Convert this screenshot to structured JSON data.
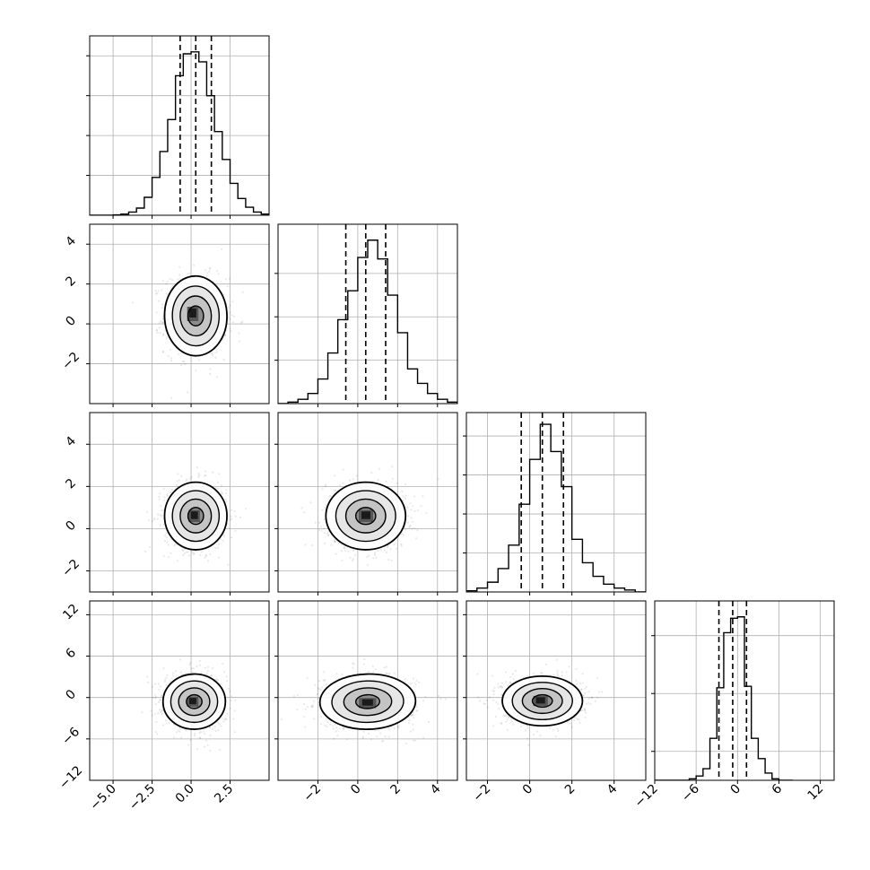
{
  "chart_data": {
    "type": "corner",
    "grid": true,
    "params": [
      {
        "range": [
          -6.5,
          5.0
        ],
        "x_ticks": [
          -5.0,
          -2.5,
          0.0,
          2.5
        ],
        "x_tick_labels": [
          "−5.0",
          "−2.5",
          "0.0",
          "2.5"
        ],
        "y_ticks": null,
        "y_tick_labels": null,
        "quantiles": [
          -0.7,
          0.3,
          1.3
        ],
        "hist": {
          "edges": [
            -6.5,
            -6.0,
            -5.5,
            -5.0,
            -4.5,
            -4.0,
            -3.5,
            -3.0,
            -2.5,
            -2.0,
            -1.5,
            -1.0,
            -0.5,
            0.0,
            0.5,
            1.0,
            1.5,
            2.0,
            2.5,
            3.0,
            3.5,
            4.0,
            4.5,
            5.0
          ],
          "counts": [
            0,
            0,
            0,
            1,
            3,
            8,
            18,
            45,
            95,
            160,
            240,
            350,
            405,
            410,
            385,
            300,
            210,
            140,
            80,
            42,
            20,
            8,
            3
          ],
          "ymax": 450,
          "grid_ticks": [
            100,
            200,
            300,
            400
          ]
        }
      },
      {
        "range": [
          -4.0,
          5.0
        ],
        "x_ticks": [
          -2,
          0,
          2,
          4
        ],
        "x_tick_labels": [
          "−2",
          "0",
          "2",
          "4"
        ],
        "y_ticks": [
          -2,
          0,
          2,
          4
        ],
        "y_tick_labels": [
          "−2",
          "0",
          "2",
          "4"
        ],
        "quantiles": [
          -0.6,
          0.4,
          1.4
        ],
        "hist": {
          "edges": [
            -4.0,
            -3.5,
            -3.0,
            -2.5,
            -2.0,
            -1.5,
            -1.0,
            -0.5,
            0.0,
            0.5,
            1.0,
            1.5,
            2.0,
            2.5,
            3.0,
            3.5,
            4.0,
            4.5,
            5.0
          ],
          "counts": [
            0,
            5,
            15,
            35,
            85,
            175,
            290,
            390,
            505,
            565,
            500,
            375,
            245,
            120,
            70,
            35,
            15,
            5
          ],
          "ymax": 620,
          "grid_ticks": [
            150,
            300,
            450
          ]
        }
      },
      {
        "range": [
          -3.0,
          5.5
        ],
        "x_ticks": [
          -2,
          0,
          2,
          4
        ],
        "x_tick_labels": [
          "−2",
          "0",
          "2",
          "4"
        ],
        "y_ticks": [
          -2,
          0,
          2,
          4
        ],
        "y_tick_labels": [
          "−2",
          "0",
          "2",
          "4"
        ],
        "quantiles": [
          -0.4,
          0.6,
          1.6
        ],
        "hist": {
          "edges": [
            -3.0,
            -2.5,
            -2.0,
            -1.5,
            -1.0,
            -0.5,
            0.0,
            0.5,
            1.0,
            1.5,
            2.0,
            2.5,
            3.0,
            3.5,
            4.0,
            4.5,
            5.0,
            5.5
          ],
          "counts": [
            3,
            10,
            25,
            60,
            120,
            225,
            340,
            430,
            360,
            270,
            135,
            75,
            40,
            20,
            10,
            5,
            0
          ],
          "ymax": 460,
          "grid_ticks": [
            100,
            200,
            300,
            400
          ]
        }
      },
      {
        "range": [
          -12.0,
          14.0
        ],
        "x_ticks": [
          -12,
          -6,
          0,
          6,
          12
        ],
        "x_tick_labels": [
          "−12",
          "−6",
          "0",
          "6",
          "12"
        ],
        "y_ticks": [
          -12,
          -6,
          0,
          6,
          12
        ],
        "y_tick_labels": [
          "−12",
          "−6",
          "0",
          "6",
          "12"
        ],
        "quantiles": [
          -2.7,
          -0.7,
          1.3
        ],
        "hist": {
          "edges": [
            -12.0,
            -11.0,
            -10.0,
            -9.0,
            -8.0,
            -7.0,
            -6.0,
            -5.0,
            -4.0,
            -3.0,
            -2.0,
            -1.0,
            0.0,
            1.0,
            2.0,
            3.0,
            4.0,
            5.0,
            6.0,
            7.0,
            8.0
          ],
          "counts": [
            0,
            0,
            0,
            0,
            0,
            5,
            15,
            40,
            145,
            320,
            510,
            560,
            565,
            325,
            145,
            75,
            25,
            5,
            0,
            0
          ],
          "ymax": 620,
          "grid_ticks": [
            100,
            300,
            500
          ]
        }
      }
    ],
    "pairs": [
      {
        "row": 1,
        "col": 0,
        "mean": [
          0.3,
          0.4
        ],
        "sd": [
          1.0,
          1.0
        ],
        "rho": -0.05,
        "mode": [
          0.2,
          0.5
        ]
      },
      {
        "row": 2,
        "col": 0,
        "mean": [
          0.3,
          0.6
        ],
        "sd": [
          1.0,
          0.8
        ],
        "rho": 0.0,
        "mode": [
          0.3,
          0.6
        ]
      },
      {
        "row": 2,
        "col": 1,
        "mean": [
          0.4,
          0.6
        ],
        "sd": [
          1.0,
          0.8
        ],
        "rho": 0.0,
        "mode": [
          0.5,
          0.6
        ]
      },
      {
        "row": 3,
        "col": 0,
        "mean": [
          0.2,
          -0.6
        ],
        "sd": [
          1.0,
          2.0
        ],
        "rho": -0.05,
        "mode": [
          0.2,
          -0.6
        ]
      },
      {
        "row": 3,
        "col": 1,
        "mean": [
          0.5,
          -0.6
        ],
        "sd": [
          1.2,
          2.0
        ],
        "rho": -0.05,
        "mode": [
          0.6,
          -0.8
        ]
      },
      {
        "row": 3,
        "col": 2,
        "mean": [
          0.6,
          -0.5
        ],
        "sd": [
          0.95,
          1.8
        ],
        "rho": 0.0,
        "mode": [
          0.6,
          -0.5
        ]
      }
    ],
    "contour_levels_sigma": [
      0.5,
      1.0,
      1.5,
      2.0
    ]
  }
}
